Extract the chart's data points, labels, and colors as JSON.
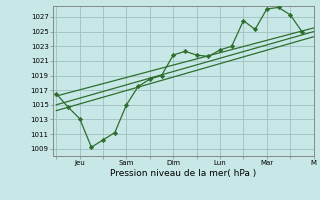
{
  "background_color": "#c8e8e8",
  "grid_color": "#a0c0c0",
  "line_color": "#2d6e2d",
  "marker_color": "#2d6e2d",
  "xlabel": "Pression niveau de la mer( hPa )",
  "yticks": [
    1009,
    1011,
    1013,
    1015,
    1017,
    1019,
    1021,
    1023,
    1025,
    1027
  ],
  "ylim": [
    1008.0,
    1028.5
  ],
  "xtick_labels": [
    "",
    "Jeu",
    "",
    "Sam",
    "",
    "Dim",
    "",
    "Lun",
    "",
    "Mar",
    "",
    "M"
  ],
  "xtick_positions": [
    0,
    2,
    4,
    6,
    8,
    10,
    12,
    14,
    16,
    18,
    20,
    22
  ],
  "xlim": [
    -0.3,
    22
  ],
  "line1_x": [
    0,
    1,
    2,
    3,
    4,
    5,
    6,
    7,
    8,
    9,
    10,
    11,
    12,
    13,
    14,
    15,
    16,
    17,
    18,
    19,
    20,
    21
  ],
  "line1_y": [
    1016.5,
    1014.7,
    1013.1,
    1009.2,
    1010.2,
    1011.2,
    1015.0,
    1017.5,
    1018.5,
    1019.0,
    1021.8,
    1022.3,
    1021.8,
    1021.6,
    1022.5,
    1023.0,
    1026.5,
    1025.3,
    1028.1,
    1028.3,
    1027.3,
    1025.0
  ],
  "line2_x": [
    0,
    22
  ],
  "line2_y": [
    1016.2,
    1025.5
  ],
  "line3_x": [
    0,
    22
  ],
  "line3_y": [
    1015.0,
    1025.0
  ],
  "line4_x": [
    0,
    22
  ],
  "line4_y": [
    1014.2,
    1024.3
  ]
}
